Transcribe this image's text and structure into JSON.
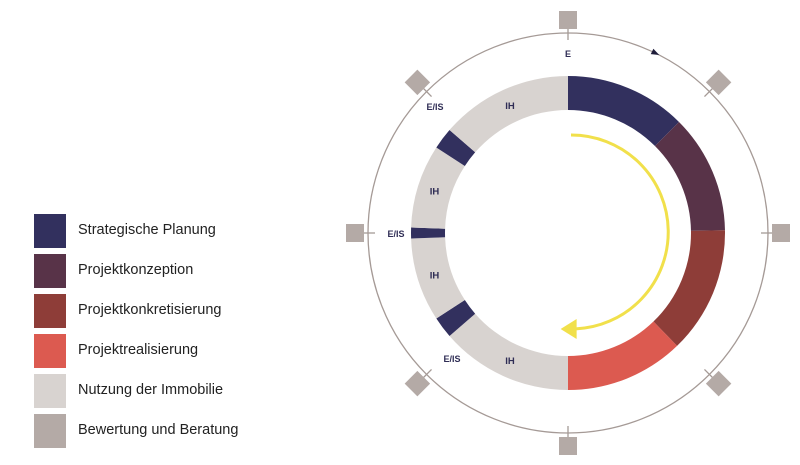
{
  "legend": {
    "items": [
      {
        "label": "Strategische Planung",
        "color": "#32305e"
      },
      {
        "label": "Projektkonzeption",
        "color": "#583348"
      },
      {
        "label": "Projektkonkretisierung",
        "color": "#8e3d38"
      },
      {
        "label": "Projektrealisierung",
        "color": "#dc5a50"
      },
      {
        "label": "Nutzung der Immobilie",
        "color": "#d8d3d0"
      },
      {
        "label": "Bewertung und Beratung",
        "color": "#b4aaa6"
      }
    ]
  },
  "diagram": {
    "top_marker_label": "E",
    "arrow_color": "#f1e04b",
    "segments": [
      {
        "label": "",
        "color": "#32305e"
      },
      {
        "label": "",
        "color": "#583348"
      },
      {
        "label": "",
        "color": "#8e3d38"
      },
      {
        "label": "",
        "color": "#dc5a50"
      },
      {
        "label": "IH",
        "color": "#d8d3d0"
      },
      {
        "label": "",
        "color": "#32305e"
      },
      {
        "label": "IH",
        "color": "#d8d3d0"
      },
      {
        "label": "",
        "color": "#32305e"
      },
      {
        "label": "IH",
        "color": "#d8d3d0"
      },
      {
        "label": "",
        "color": "#32305e"
      },
      {
        "label": "IH",
        "color": "#d8d3d0"
      }
    ],
    "outer_labels": [
      "E/IS",
      "E/IS",
      "E/IS"
    ]
  }
}
